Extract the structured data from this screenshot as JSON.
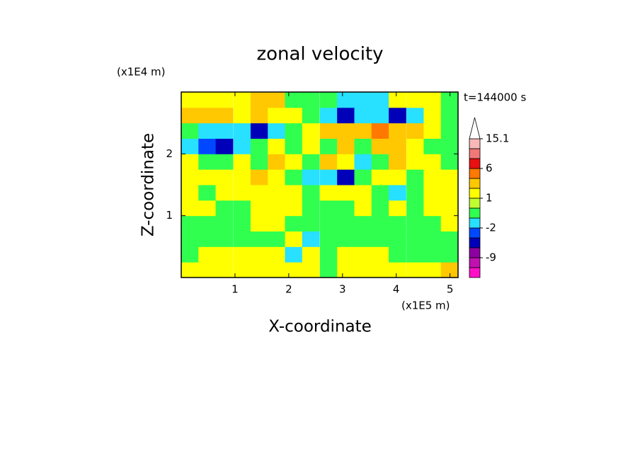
{
  "chart_data": {
    "type": "contour",
    "title": "zonal velocity",
    "xlabel": "X-coordinate",
    "ylabel": "Z-coordinate",
    "xunit": "(x1E5 m)",
    "yunit": "(x1E4 m)",
    "annotation": "t=144000 s",
    "xlim": [
      0,
      5.15
    ],
    "ylim": [
      0,
      3
    ],
    "xticks": [
      1,
      2,
      3,
      4,
      5
    ],
    "yticks": [
      1,
      2
    ],
    "x": [
      0.16,
      0.48,
      0.8,
      1.13,
      1.45,
      1.77,
      2.09,
      2.41,
      2.74,
      3.06,
      3.38,
      3.7,
      4.02,
      4.35,
      4.67,
      4.99
    ],
    "y": [
      0.125,
      0.375,
      0.625,
      0.875,
      1.125,
      1.375,
      1.625,
      1.875,
      2.125,
      2.375,
      2.625,
      2.875
    ],
    "z": [
      [
        1.5,
        1.5,
        1.5,
        1.5,
        1.5,
        1.5,
        1.5,
        1.5,
        -0.5,
        1.5,
        1.5,
        1.5,
        1.5,
        1.5,
        1.5,
        2.5
      ],
      [
        -0.5,
        1.5,
        1.5,
        1.5,
        1.5,
        1.5,
        -1.5,
        1.5,
        -0.5,
        1.5,
        1.5,
        1.5,
        -0.5,
        -0.5,
        -0.5,
        -0.5
      ],
      [
        -0.5,
        -0.5,
        -0.5,
        -0.5,
        -0.5,
        -0.5,
        1.5,
        -1.5,
        -0.5,
        -0.5,
        -0.5,
        -0.5,
        -0.5,
        -0.5,
        -0.5,
        -0.5
      ],
      [
        -0.5,
        -0.5,
        -0.5,
        -0.5,
        1.5,
        1.5,
        -0.5,
        -0.5,
        -0.5,
        -0.5,
        -0.5,
        -0.5,
        -0.5,
        -0.5,
        -0.5,
        1.5
      ],
      [
        1.5,
        1.5,
        -0.5,
        -0.5,
        1.5,
        1.5,
        1.5,
        -0.5,
        -0.5,
        -0.5,
        1.5,
        -0.5,
        1.5,
        -0.5,
        1.5,
        1.5
      ],
      [
        1.5,
        -0.5,
        1.5,
        1.5,
        1.5,
        1.5,
        1.5,
        -0.5,
        1.5,
        1.5,
        1.5,
        -0.5,
        -1.5,
        -0.5,
        1.5,
        1.5
      ],
      [
        1.5,
        1.5,
        1.5,
        1.5,
        2.5,
        1.5,
        -0.5,
        -1.5,
        -1.5,
        -4,
        -0.5,
        1.5,
        1.5,
        -0.5,
        1.5,
        1.5
      ],
      [
        1.5,
        -0.5,
        -0.5,
        1.5,
        -0.5,
        2.5,
        1.5,
        -0.5,
        2.5,
        1.5,
        -1.5,
        -0.5,
        2.5,
        1.5,
        1.5,
        -0.5
      ],
      [
        -1.5,
        -2.5,
        -4,
        -1.5,
        -0.5,
        1.5,
        -0.5,
        1.5,
        -0.5,
        2.5,
        -0.5,
        2.5,
        2.5,
        1.5,
        -0.5,
        -0.5
      ],
      [
        -0.5,
        -1.5,
        -1.5,
        -1.5,
        -4,
        -1.5,
        -0.5,
        1.5,
        2.5,
        2.5,
        2.5,
        4,
        2.5,
        2.5,
        1.5,
        -0.5
      ],
      [
        2.5,
        2.5,
        2.5,
        1.5,
        2.5,
        1.5,
        1.5,
        -0.5,
        -1.5,
        -4,
        -1.5,
        -1.5,
        -4,
        -1.5,
        1.5,
        -0.5
      ],
      [
        1.5,
        1.5,
        1.5,
        1.5,
        2.5,
        2.5,
        -0.5,
        -0.5,
        -0.5,
        -1.5,
        -1.5,
        -1.5,
        1.5,
        1.5,
        1.5,
        -0.5
      ]
    ],
    "levels": [
      -15,
      -12,
      -9,
      -6,
      -3,
      -2,
      -1,
      0,
      1,
      2,
      3,
      6,
      9,
      12,
      15.1
    ],
    "colors": [
      "#ff10c8",
      "#c010b0",
      "#8c00a0",
      "#0000b8",
      "#0048ff",
      "#28e0ff",
      "#30ff50",
      "#c0ff30",
      "#ffff00",
      "#ffc800",
      "#ff7800",
      "#e81010",
      "#f07878",
      "#f8b8b8"
    ],
    "over_color": "#ffffff",
    "colorbar_ticks": [
      -9,
      -2,
      1,
      6,
      15.1
    ]
  }
}
